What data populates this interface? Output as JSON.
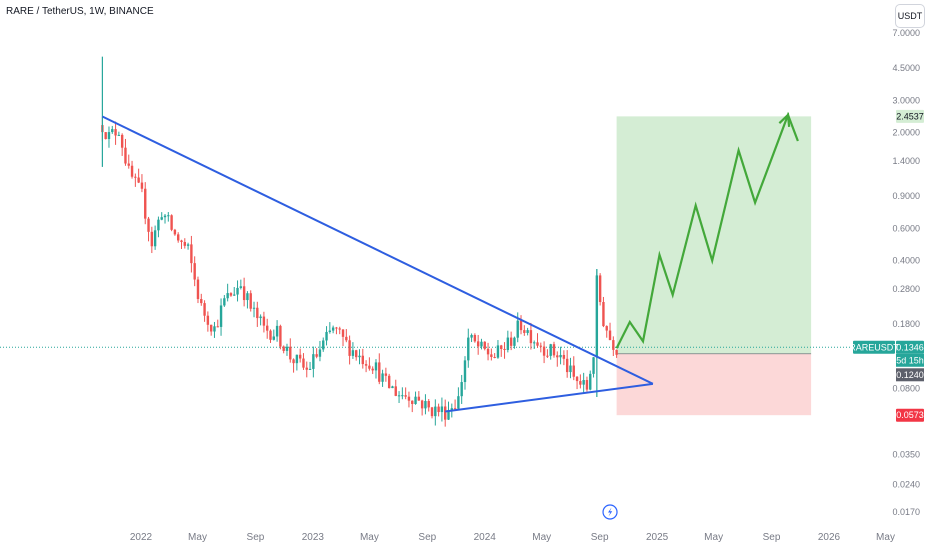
{
  "legend": {
    "text": "RARE / TetherUS, 1W, BINANCE"
  },
  "currency_button": {
    "label": "USDT"
  },
  "chart_data": {
    "type": "candlestick",
    "symbol": "RARE / TetherUS",
    "interval": "1W",
    "exchange": "BINANCE",
    "y_scale": "log",
    "price_ticks": [
      "7.0000",
      "4.5000",
      "3.0000",
      "2.0000",
      "1.4000",
      "0.9000",
      "0.6000",
      "0.4000",
      "0.2800",
      "0.1800",
      "0.0800",
      "0.0350",
      "0.0240",
      "0.0170"
    ],
    "time_ticks": [
      {
        "label": "2022",
        "date": "2022-01"
      },
      {
        "label": "May",
        "date": "2022-05"
      },
      {
        "label": "Sep",
        "date": "2022-09"
      },
      {
        "label": "2023",
        "date": "2023-01"
      },
      {
        "label": "May",
        "date": "2023-05"
      },
      {
        "label": "Sep",
        "date": "2023-09"
      },
      {
        "label": "2024",
        "date": "2024-01"
      },
      {
        "label": "May",
        "date": "2024-05"
      },
      {
        "label": "Sep",
        "date": "2024-09"
      },
      {
        "label": "2025",
        "date": "2025-01"
      },
      {
        "label": "May",
        "date": "2025-05"
      },
      {
        "label": "Sep",
        "date": "2025-09"
      },
      {
        "label": "2026",
        "date": "2026-01"
      },
      {
        "label": "May",
        "date": "2026-05"
      }
    ],
    "price_path": [
      [
        "2021-10-11",
        2.2
      ],
      [
        "2021-10-25",
        1.9
      ],
      [
        "2021-11-15",
        2.1
      ],
      [
        "2021-12-06",
        1.2
      ],
      [
        "2022-01-03",
        0.9
      ],
      [
        "2022-01-24",
        0.5
      ],
      [
        "2022-02-14",
        0.75
      ],
      [
        "2022-03-14",
        0.55
      ],
      [
        "2022-04-11",
        0.45
      ],
      [
        "2022-05-09",
        0.22
      ],
      [
        "2022-06-06",
        0.17
      ],
      [
        "2022-06-27",
        0.24
      ],
      [
        "2022-08-01",
        0.3
      ],
      [
        "2022-08-22",
        0.22
      ],
      [
        "2022-09-19",
        0.17
      ],
      [
        "2022-10-17",
        0.16
      ],
      [
        "2022-11-14",
        0.12
      ],
      [
        "2022-12-19",
        0.1
      ],
      [
        "2023-01-16",
        0.13
      ],
      [
        "2023-02-13",
        0.17
      ],
      [
        "2023-03-13",
        0.14
      ],
      [
        "2023-04-10",
        0.12
      ],
      [
        "2023-05-08",
        0.11
      ],
      [
        "2023-06-05",
        0.085
      ],
      [
        "2023-07-03",
        0.075
      ],
      [
        "2023-08-07",
        0.072
      ],
      [
        "2023-09-04",
        0.062
      ],
      [
        "2023-10-09",
        0.06
      ],
      [
        "2023-11-06",
        0.07
      ],
      [
        "2023-11-27",
        0.15
      ],
      [
        "2023-12-25",
        0.13
      ],
      [
        "2024-01-22",
        0.12
      ],
      [
        "2024-02-19",
        0.14
      ],
      [
        "2024-03-18",
        0.18
      ],
      [
        "2024-04-15",
        0.15
      ],
      [
        "2024-05-13",
        0.13
      ],
      [
        "2024-06-10",
        0.12
      ],
      [
        "2024-07-08",
        0.09
      ],
      [
        "2024-08-05",
        0.08
      ],
      [
        "2024-08-19",
        0.125
      ],
      [
        "2024-08-26",
        0.3
      ],
      [
        "2024-09-09",
        0.19
      ],
      [
        "2024-09-23",
        0.15
      ],
      [
        "2024-10-07",
        0.1346
      ]
    ],
    "highlighted_candles": [
      {
        "date": "2021-10-11",
        "high": 5.2,
        "low": 1.3
      },
      {
        "date": "2024-08-26",
        "high": 0.36,
        "low": 0.072
      }
    ],
    "trendlines": [
      {
        "name": "descending resistance",
        "from": [
          "2021-10-11",
          2.45
        ],
        "to": [
          "2024-12-23",
          0.085
        ]
      },
      {
        "name": "ascending support",
        "from": [
          "2023-10-09",
          0.06
        ],
        "to": [
          "2024-12-23",
          0.085
        ]
      }
    ],
    "position": {
      "entry": 0.124,
      "target": 2.4537,
      "stop": 0.0573,
      "start_date": "2024-10-07",
      "end_date": "2025-11-24",
      "profit_color": "#d4edd4",
      "loss_color": "#fcd8d8"
    },
    "projection_path": [
      [
        "2024-10-07",
        0.133
      ],
      [
        "2024-11-04",
        0.185
      ],
      [
        "2024-12-02",
        0.145
      ],
      [
        "2025-01-06",
        0.43
      ],
      [
        "2025-02-03",
        0.26
      ],
      [
        "2025-03-24",
        0.8
      ],
      [
        "2025-04-28",
        0.4
      ],
      [
        "2025-06-23",
        1.6
      ],
      [
        "2025-07-28",
        0.83
      ],
      [
        "2025-10-06",
        2.5
      ],
      [
        "2025-10-27",
        1.8
      ]
    ],
    "markers": {
      "target_label": "2.4537",
      "symbol_label": "RAREUSDT",
      "current_price": "0.1346",
      "countdown": "5d 15h",
      "entry_label": "0.1240",
      "stop_label": "0.0573"
    },
    "colors": {
      "up": "#26a69a",
      "down": "#ef5350",
      "trendline": "#2e5ee0",
      "projection": "#43a83a",
      "profit_tag": "#d4edd4",
      "last_price_tag": "#26a69a",
      "entry_tag": "#5d606b",
      "stop_tag": "#f23645",
      "event_icon": "#2962ff"
    }
  }
}
